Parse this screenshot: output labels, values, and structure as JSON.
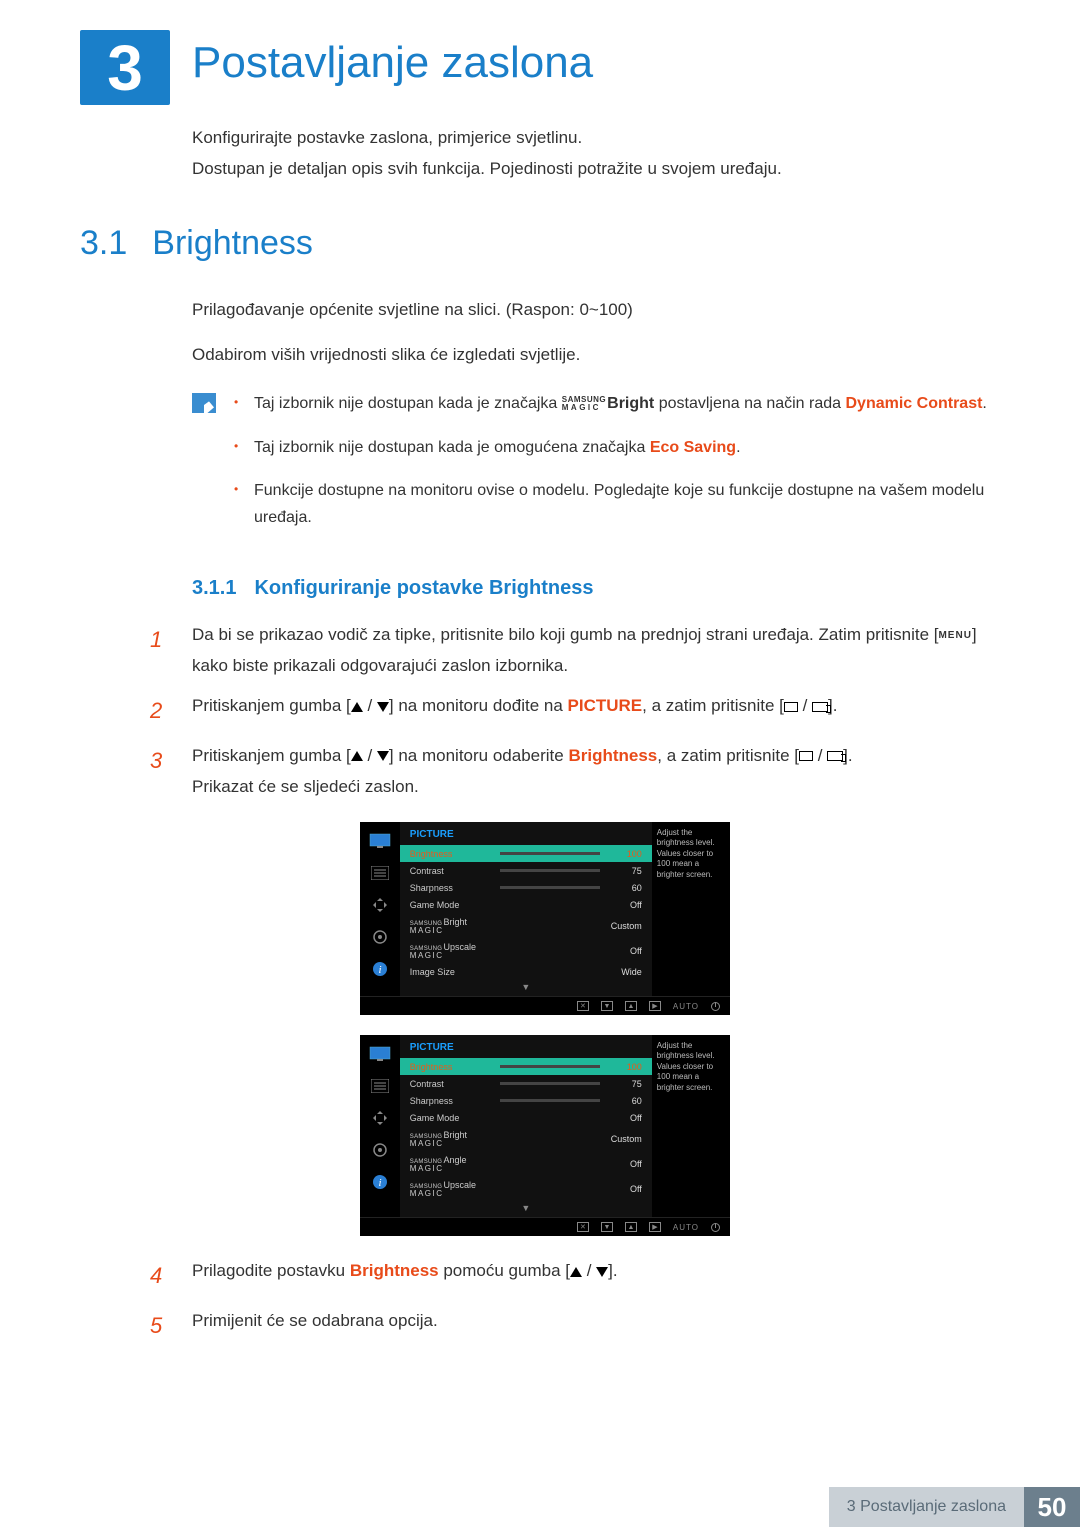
{
  "chapter": {
    "num": "3",
    "title": "Postavljanje zaslona"
  },
  "chapter_desc": [
    "Konfigurirajte postavke zaslona, primjerice svjetlinu.",
    "Dostupan je detaljan opis svih funkcija. Pojedinosti potražite u svojem uređaju."
  ],
  "section": {
    "num": "3.1",
    "title": "Brightness"
  },
  "section_body": [
    "Prilagođavanje općenite svjetline na slici. (Raspon: 0~100)",
    "Odabirom viših vrijednosti slika će izgledati svjetlije."
  ],
  "notes": {
    "n1_pre": "Taj izbornik nije dostupan kada je značajka ",
    "n1_bright": "Bright",
    "n1_mid": " postavljena na način rada ",
    "n1_dc": "Dynamic Contrast",
    "n2_pre": "Taj izbornik nije dostupan kada je omogućena značajka ",
    "n2_eco": "Eco Saving",
    "n3": "Funkcije dostupne na monitoru ovise o modelu. Pogledajte koje su funkcije dostupne na vašem modelu uređaja."
  },
  "subsection": {
    "num": "3.1.1",
    "title": "Konfiguriranje postavke Brightness"
  },
  "steps": {
    "s1a": "Da bi se prikazao vodič za tipke, pritisnite bilo koji gumb na prednjoj strani uređaja. Zatim pritisnite [",
    "s1_menu": "MENU",
    "s1b": "] kako biste prikazali odgovarajući zaslon izbornika.",
    "s2a": "Pritiskanjem gumba [",
    "s2b": "] na monitoru dođite na ",
    "s2_pic": "PICTURE",
    "s2c": ", a zatim pritisnite [",
    "s2d": "].",
    "s3a": "Pritiskanjem gumba [",
    "s3b": "] na monitoru odaberite ",
    "s3_br": "Brightness",
    "s3c": ", a zatim pritisnite [",
    "s3d": "].",
    "s3e": "Prikazat će se sljedeći zaslon.",
    "s4a": "Prilagodite postavku ",
    "s4_br": "Brightness",
    "s4b": " pomoću gumba [",
    "s4c": "].",
    "s5": "Primijenit će se odabrana opcija."
  },
  "osd": {
    "header": "PICTURE",
    "tip": "Adjust the brightness level. Values closer to 100 mean a brighter screen.",
    "auto": "AUTO",
    "samsung": "SAMSUNG",
    "magic": "MAGIC",
    "rows1": [
      {
        "label": "Brightness",
        "value": "100",
        "bar": 100,
        "hl": true
      },
      {
        "label": "Contrast",
        "value": "75",
        "bar": 75
      },
      {
        "label": "Sharpness",
        "value": "60",
        "bar": 60
      },
      {
        "label": "Game Mode",
        "value": "Off"
      },
      {
        "label": "Bright",
        "value": "Custom",
        "sm": true
      },
      {
        "label": "Upscale",
        "value": "Off",
        "sm": true
      },
      {
        "label": "Image Size",
        "value": "Wide"
      }
    ],
    "rows2": [
      {
        "label": "Brightness",
        "value": "100",
        "bar": 100,
        "hl": true
      },
      {
        "label": "Contrast",
        "value": "75",
        "bar": 75
      },
      {
        "label": "Sharpness",
        "value": "60",
        "bar": 60
      },
      {
        "label": "Game Mode",
        "value": "Off"
      },
      {
        "label": "Bright",
        "value": "Custom",
        "sm": true
      },
      {
        "label": "Angle",
        "value": "Off",
        "sm": true
      },
      {
        "label": "Upscale",
        "value": "Off",
        "sm": true
      }
    ]
  },
  "footer": {
    "text": "3 Postavljanje zaslona",
    "num": "50"
  }
}
